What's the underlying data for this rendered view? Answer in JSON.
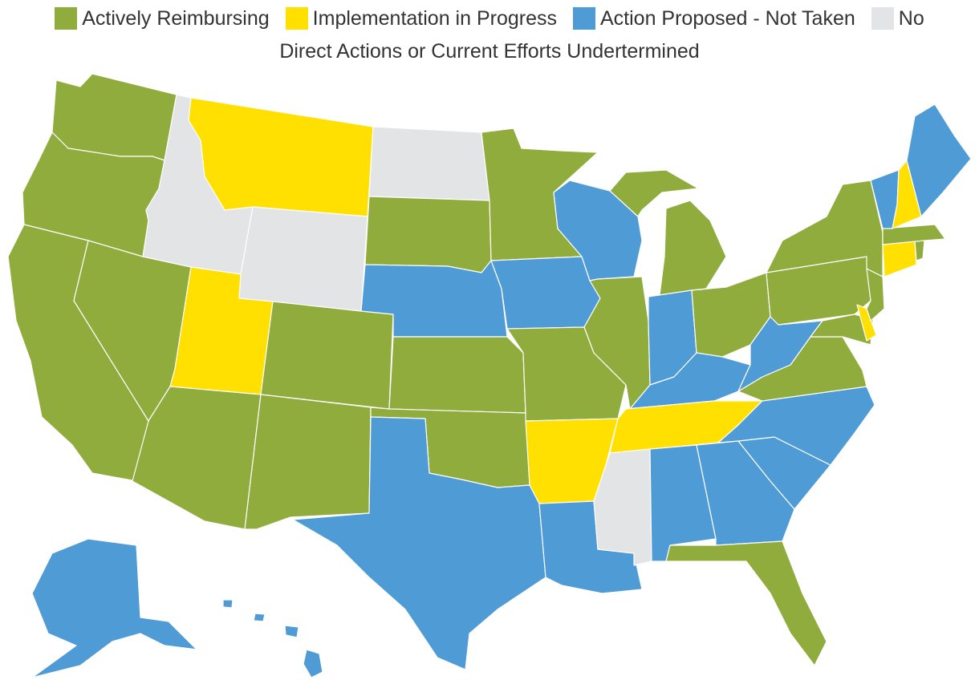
{
  "legend": {
    "items": [
      {
        "label": "Actively Reimbursing",
        "color": "#8fac3c"
      },
      {
        "label": "Implementation in Progress",
        "color": "#ffe000"
      },
      {
        "label": "Action Proposed - Not Taken",
        "color": "#4f9bd5"
      },
      {
        "label": "No",
        "color": "#e3e4e6"
      }
    ],
    "wrap_label": "Direct Actions or Current Efforts Undertermined"
  },
  "categories": {
    "active": "#8fac3c",
    "progress": "#ffe000",
    "proposed": "#4f9bd5",
    "none": "#e3e4e6"
  },
  "states": {
    "WA": "active",
    "OR": "active",
    "CA": "active",
    "NV": "active",
    "ID": "none",
    "MT": "progress",
    "WY": "none",
    "UT": "progress",
    "AZ": "active",
    "CO": "active",
    "NM": "active",
    "ND": "none",
    "SD": "active",
    "NE": "proposed",
    "KS": "active",
    "OK": "active",
    "TX": "proposed",
    "MN": "active",
    "IA": "proposed",
    "MO": "active",
    "AR": "progress",
    "LA": "proposed",
    "WI": "proposed",
    "IL": "active",
    "MS": "none",
    "MI": "active",
    "IN": "proposed",
    "KY": "proposed",
    "TN": "progress",
    "AL": "proposed",
    "OH": "active",
    "GA": "proposed",
    "FL": "active",
    "SC": "proposed",
    "NC": "proposed",
    "VA": "active",
    "WV": "proposed",
    "PA": "active",
    "NY": "active",
    "NJ": "active",
    "DE": "progress",
    "MD": "active",
    "CT": "progress",
    "RI": "active",
    "MA": "active",
    "VT": "proposed",
    "NH": "progress",
    "ME": "proposed",
    "AK": "proposed",
    "HI": "proposed"
  }
}
